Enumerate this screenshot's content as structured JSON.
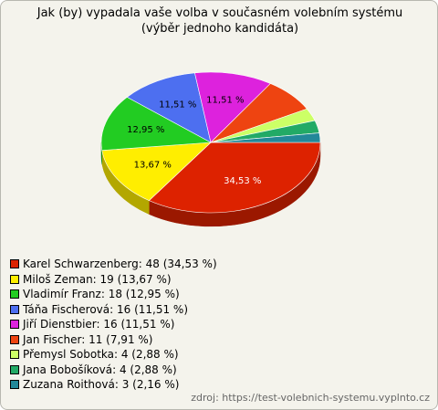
{
  "chart_data": {
    "type": "pie",
    "title": "Jak (by) vypadala vaše volba v současném volebním systému (výběr jednoho kandidáta)",
    "categories": [
      "Karel Schwarzenberg: 48 (34,53 %)",
      "Miloš Zeman: 19 (13,67 %)",
      "Vladimír Franz: 18 (12,95 %)",
      "Táňa Fischerová: 16 (11,51 %)",
      "Jiří Dienstbier: 16 (11,51 %)",
      "Jan Fischer: 11 (7,91 %)",
      "Přemysl Sobotka: 4 (2,88 %)",
      "Jana Bobošíková: 4 (2,88 %)",
      "Zuzana Roithová: 3 (2,16 %)"
    ],
    "values": [
      34.53,
      13.67,
      12.95,
      11.51,
      11.51,
      7.91,
      2.88,
      2.88,
      2.16
    ],
    "value_labels": [
      "34,53 %",
      "13,67 %",
      "12,95 %",
      "11,51 %",
      "11,51 %",
      null,
      null,
      null,
      null
    ],
    "colors": [
      "#dd2200",
      "#ffee00",
      "#22cc22",
      "#4d6ff0",
      "#dd22dd",
      "#ee4411",
      "#ccff66",
      "#22aa66",
      "#228899"
    ],
    "source": "zdroj: https://test-volebnich-systemu.vyplnto.cz"
  }
}
